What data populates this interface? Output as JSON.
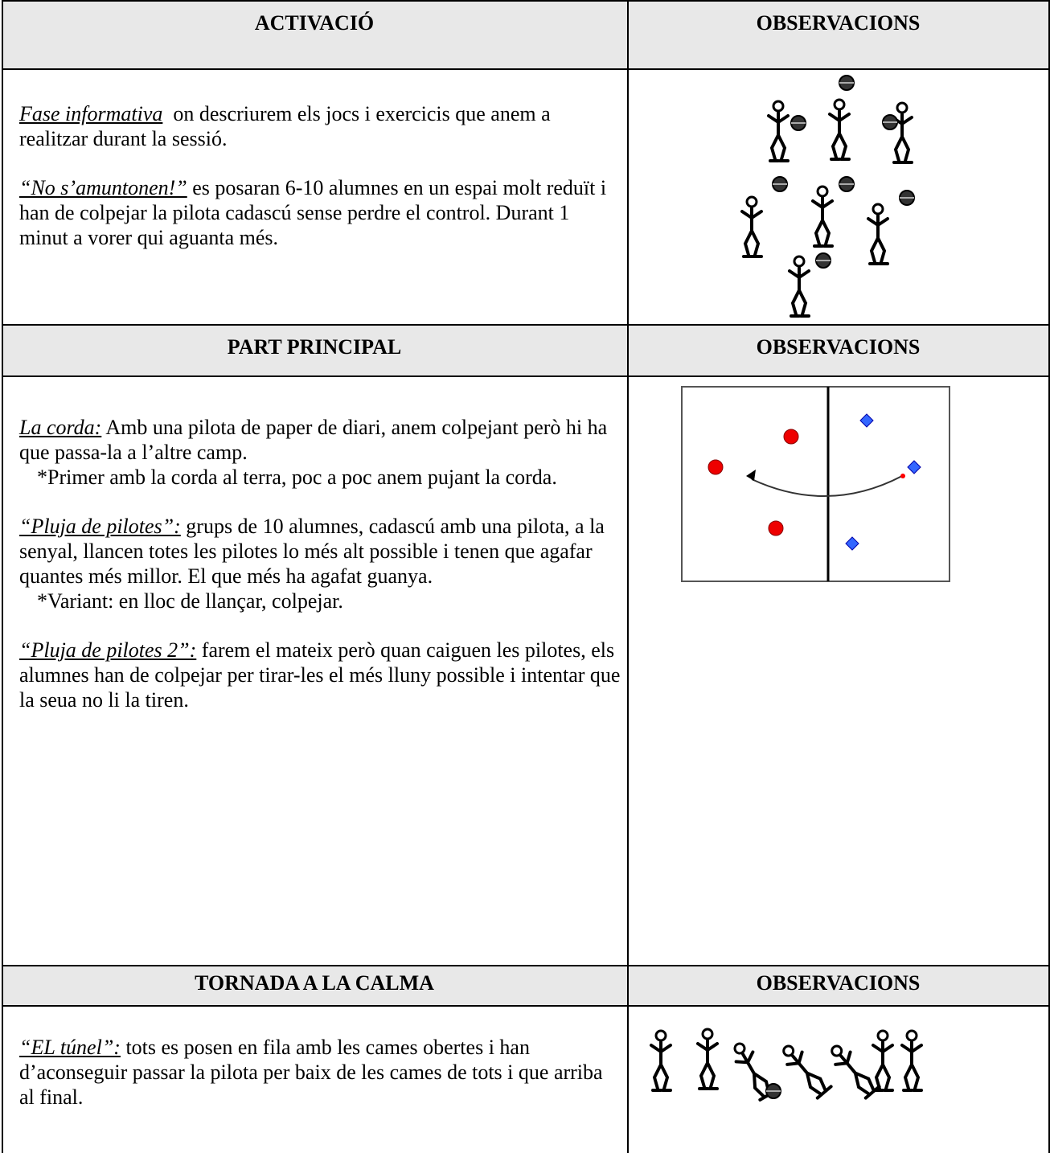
{
  "sections": [
    {
      "header": "ACTIVACIÓ",
      "observations_header": "OBSERVACIONS",
      "paragraphs": [
        {
          "lead": "Fase informativa",
          "text": "  on descriurem els jocs i exercicis que anem a realitzar durant la sessió."
        },
        {
          "lead": "“No s’amuntonen!”",
          "text": " es posaran 6-10 alumnes en un espai molt reduït i han de colpejar la pilota cadascú sense perdre el control. Durant 1 minut a vorer qui aguanta més."
        }
      ]
    },
    {
      "header": "PART PRINCIPAL",
      "observations_header": "OBSERVACIONS",
      "paragraphs": [
        {
          "lead": "La corda:",
          "text": " Amb una pilota de paper de diari, anem colpejant però hi ha que passa-la a l’altre camp.",
          "note": "*Primer amb la corda al terra, poc a poc anem  pujant la corda."
        },
        {
          "lead": "“Pluja de pilotes”:",
          "text": " grups de 10 alumnes, cadascú amb una pilota, a la senyal, llancen totes les pilotes lo més alt possible i tenen que agafar quantes més millor. El que més ha agafat guanya.",
          "note": "*Variant: en lloc de llançar, colpejar."
        },
        {
          "lead": "“Pluja de pilotes 2”:",
          "text": " farem el mateix però quan caiguen les pilotes, els alumnes han de colpejar per tirar-les el més lluny possible i intentar que la seua no li la tiren."
        }
      ]
    },
    {
      "header": "TORNADA A LA CALMA",
      "observations_header": "OBSERVACIONS",
      "paragraphs": [
        {
          "lead": "“EL túnel”:",
          "text": " tots es posen en fila amb les cames obertes i han d’aconseguir passar la pilota per baix de les cames de tots i que arriba al final."
        }
      ]
    }
  ]
}
